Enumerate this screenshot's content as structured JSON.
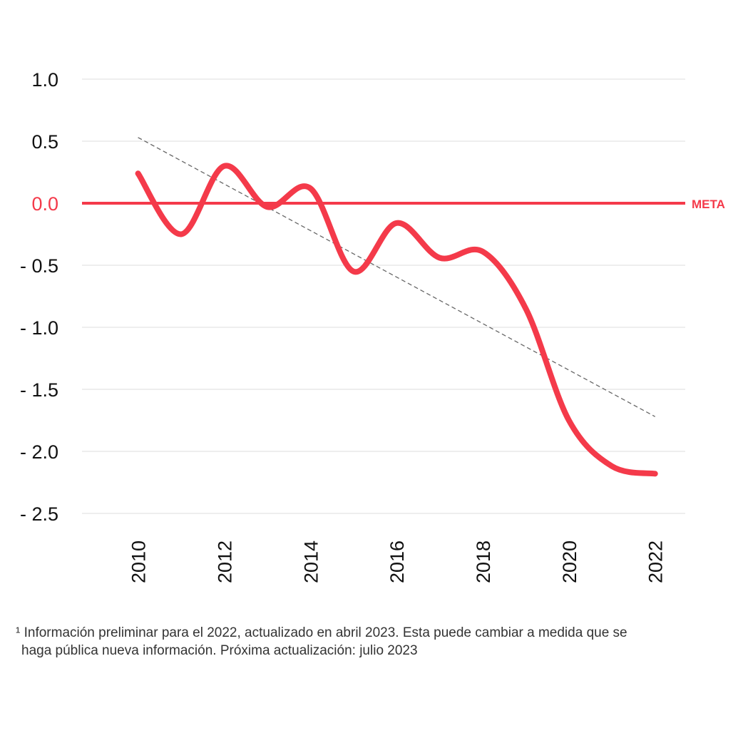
{
  "chart_data": {
    "type": "line",
    "title": "",
    "xlabel": "",
    "ylabel": "",
    "ylim": [
      -2.5,
      1.0
    ],
    "yticks": [
      1.0,
      0.5,
      0.0,
      -0.5,
      -1.0,
      -1.5,
      -2.0,
      -2.5
    ],
    "ytick_labels": [
      "1.0",
      "0.5",
      "0.0",
      "- 0.5",
      "- 1.0",
      "- 1.5",
      "- 2.0",
      "- 2.5"
    ],
    "xlim": [
      2008.7,
      2022.7
    ],
    "xtick_labels": [
      "2010",
      "2012",
      "2014",
      "2016",
      "2018",
      "2020",
      "2022"
    ],
    "xticks": [
      2010,
      2012,
      2014,
      2016,
      2018,
      2020,
      2022
    ],
    "grid": true,
    "series": [
      {
        "values_x": [
          2010,
          2011,
          2012,
          2013,
          2014,
          2015,
          2016,
          2017,
          2018,
          2019,
          2020,
          2021,
          2022
        ],
        "values_y": [
          0.24,
          -0.25,
          0.3,
          -0.03,
          0.12,
          -0.55,
          -0.16,
          -0.44,
          -0.39,
          -0.85,
          -1.75,
          -2.12,
          -2.18
        ],
        "color": "#f43a4a"
      }
    ],
    "trendline": {
      "x": [
        2010,
        2022
      ],
      "y": [
        0.53,
        -1.72
      ],
      "color": "#666666",
      "style": "dashed"
    },
    "reference_line": {
      "y": 0.0,
      "label": "META",
      "color": "#f43a4a"
    }
  },
  "footnote": {
    "line1": "¹ Información preliminar para el 2022, actualizado en abril 2023. Esta puede cambiar a medida que se",
    "line2": "haga pública nueva información. Próxima actualización: julio 2023"
  }
}
